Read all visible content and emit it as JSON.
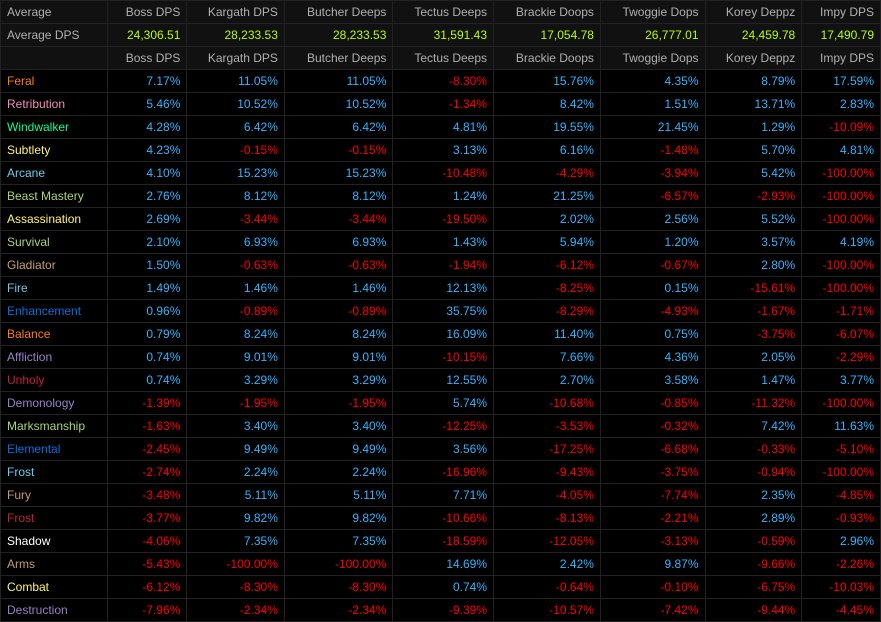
{
  "headerColor": "#b0b0b0",
  "avgLabelColor": "#b0b0b0",
  "avgValueColor": "#b8ff00",
  "columns": [
    "Average",
    "Boss DPS",
    "Kargath DPS",
    "Butcher Deeps",
    "Tectus Deeps",
    "Brackie Doops",
    "Twoggie Dops",
    "Korey Deppz",
    "Impy DPS"
  ],
  "avgRow": {
    "label": "Average DPS",
    "values": [
      "24,306.51",
      "28,233.53",
      "28,233.53",
      "31,591.43",
      "17,054.78",
      "26,777.01",
      "24,459.78",
      "17,490.79"
    ]
  },
  "subHeader": [
    "",
    "Boss DPS",
    "Kargath DPS",
    "Butcher Deeps",
    "Tectus Deeps",
    "Brackie Doops",
    "Twoggie Dops",
    "Korey Deppz",
    "Impy DPS"
  ],
  "posColor": "#32b4ff",
  "negColor": "#ff0000",
  "rows": [
    {
      "label": "Feral",
      "color": "#ff7d0a",
      "vals": [
        "7.17%",
        "11.05%",
        "11.05%",
        "-8.30%",
        "15.76%",
        "4.35%",
        "8.79%",
        "17.59%"
      ]
    },
    {
      "label": "Retribution",
      "color": "#f58cba",
      "vals": [
        "5.46%",
        "10.52%",
        "10.52%",
        "-1.34%",
        "8.42%",
        "1.51%",
        "13.71%",
        "2.83%"
      ]
    },
    {
      "label": "Windwalker",
      "color": "#00ff96",
      "vals": [
        "4.28%",
        "6.42%",
        "6.42%",
        "4.81%",
        "19.55%",
        "21.45%",
        "1.29%",
        "-10.09%"
      ]
    },
    {
      "label": "Subtlety",
      "color": "#fff569",
      "vals": [
        "4.23%",
        "-0.15%",
        "-0.15%",
        "3.13%",
        "6.16%",
        "-1.48%",
        "5.70%",
        "4.81%"
      ]
    },
    {
      "label": "Arcane",
      "color": "#69ccf0",
      "vals": [
        "4.10%",
        "15.23%",
        "15.23%",
        "-10.48%",
        "-4.29%",
        "-3.94%",
        "5.42%",
        "-100.00%"
      ]
    },
    {
      "label": "Beast Mastery",
      "color": "#abd473",
      "vals": [
        "2.76%",
        "8.12%",
        "8.12%",
        "1.24%",
        "21.25%",
        "-6.57%",
        "-2.93%",
        "-100.00%"
      ]
    },
    {
      "label": "Assassination",
      "color": "#fff569",
      "vals": [
        "2.69%",
        "-3.44%",
        "-3.44%",
        "-19.50%",
        "2.02%",
        "2.56%",
        "5.52%",
        "-100.00%"
      ]
    },
    {
      "label": "Survival",
      "color": "#abd473",
      "vals": [
        "2.10%",
        "6.93%",
        "6.93%",
        "1.43%",
        "5.94%",
        "1.20%",
        "3.57%",
        "4.19%"
      ]
    },
    {
      "label": "Gladiator",
      "color": "#c79c6e",
      "vals": [
        "1.50%",
        "-0.63%",
        "-0.63%",
        "-1.94%",
        "-6.12%",
        "-0.67%",
        "2.80%",
        "-100.00%"
      ]
    },
    {
      "label": "Fire",
      "color": "#69ccf0",
      "vals": [
        "1.49%",
        "1.46%",
        "1.46%",
        "12.13%",
        "-8.25%",
        "0.15%",
        "-15.61%",
        "-100.00%"
      ]
    },
    {
      "label": "Enhancement",
      "color": "#0070de",
      "vals": [
        "0.96%",
        "-0.89%",
        "-0.89%",
        "35.75%",
        "-8.29%",
        "-4.93%",
        "-1.67%",
        "-1.71%"
      ]
    },
    {
      "label": "Balance",
      "color": "#ff7d0a",
      "vals": [
        "0.79%",
        "8.24%",
        "8.24%",
        "16.09%",
        "11.40%",
        "0.75%",
        "-3.75%",
        "-6.07%"
      ]
    },
    {
      "label": "Affliction",
      "color": "#9482c9",
      "vals": [
        "0.74%",
        "9.01%",
        "9.01%",
        "-10.15%",
        "7.66%",
        "4.36%",
        "2.05%",
        "-2.29%"
      ]
    },
    {
      "label": "Unholy",
      "color": "#c41f3b",
      "vals": [
        "0.74%",
        "3.29%",
        "3.29%",
        "12.55%",
        "2.70%",
        "3.58%",
        "1.47%",
        "3.77%"
      ]
    },
    {
      "label": "Demonology",
      "color": "#9482c9",
      "vals": [
        "-1.39%",
        "-1.95%",
        "-1.95%",
        "5.74%",
        "-10.68%",
        "-0.85%",
        "-11.32%",
        "-100.00%"
      ]
    },
    {
      "label": "Marksmanship",
      "color": "#abd473",
      "vals": [
        "-1.63%",
        "3.40%",
        "3.40%",
        "-12.25%",
        "-3.53%",
        "-0.32%",
        "7.42%",
        "11.63%"
      ]
    },
    {
      "label": "Elemental",
      "color": "#0070de",
      "vals": [
        "-2.45%",
        "9.49%",
        "9.49%",
        "3.56%",
        "-17.25%",
        "-6.68%",
        "-0.33%",
        "-5.10%"
      ]
    },
    {
      "label": "Frost",
      "color": "#69ccf0",
      "vals": [
        "-2.74%",
        "2.24%",
        "2.24%",
        "-16.96%",
        "-9.43%",
        "-3.75%",
        "-0.94%",
        "-100.00%"
      ]
    },
    {
      "label": "Fury",
      "color": "#c79c6e",
      "vals": [
        "-3.48%",
        "5.11%",
        "5.11%",
        "7.71%",
        "-4.05%",
        "-7.74%",
        "2.35%",
        "-4.85%"
      ]
    },
    {
      "label": "Frost",
      "color": "#c41f3b",
      "vals": [
        "-3.77%",
        "9.82%",
        "9.82%",
        "-10.66%",
        "-8.13%",
        "-2.21%",
        "2.89%",
        "-0.93%"
      ]
    },
    {
      "label": "Shadow",
      "color": "#ffffff",
      "vals": [
        "-4.06%",
        "7.35%",
        "7.35%",
        "-18.59%",
        "-12.05%",
        "-3.13%",
        "-0.59%",
        "2.96%"
      ]
    },
    {
      "label": "Arms",
      "color": "#c79c6e",
      "vals": [
        "-5.43%",
        "-100.00%",
        "-100.00%",
        "14.69%",
        "2.42%",
        "9.87%",
        "-9.66%",
        "-2.26%"
      ]
    },
    {
      "label": "Combat",
      "color": "#fff569",
      "vals": [
        "-6.12%",
        "-8.30%",
        "-8.30%",
        "0.74%",
        "-0.64%",
        "-0.10%",
        "-6.75%",
        "-10.03%"
      ]
    },
    {
      "label": "Destruction",
      "color": "#9482c9",
      "vals": [
        "-7.96%",
        "-2.34%",
        "-2.34%",
        "-9.39%",
        "-10.57%",
        "-7.42%",
        "-9.44%",
        "-4.45%"
      ]
    }
  ]
}
